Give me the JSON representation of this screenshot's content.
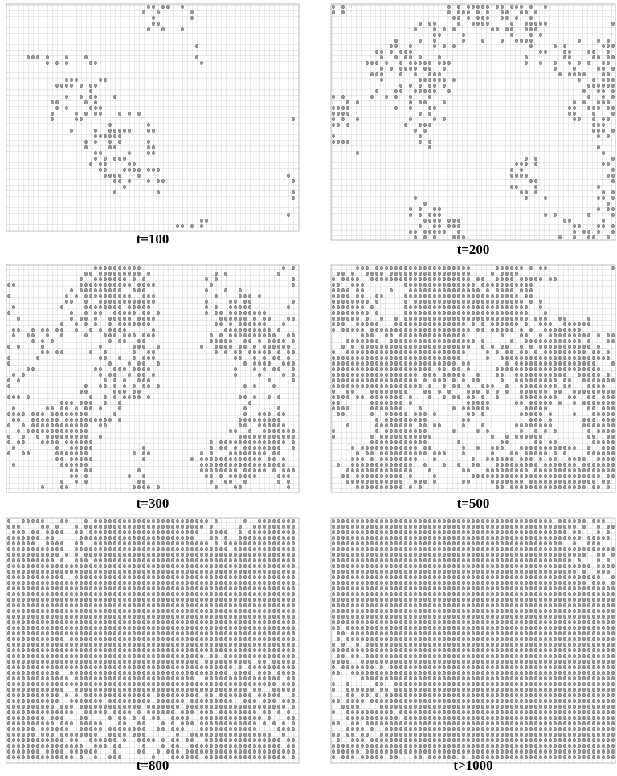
{
  "panels": [
    {
      "label": "t=100"
    },
    {
      "label": "t=200"
    },
    {
      "label": "t=300"
    },
    {
      "label": "t=500"
    },
    {
      "label": "t=800"
    },
    {
      "label": "t>1000"
    }
  ]
}
